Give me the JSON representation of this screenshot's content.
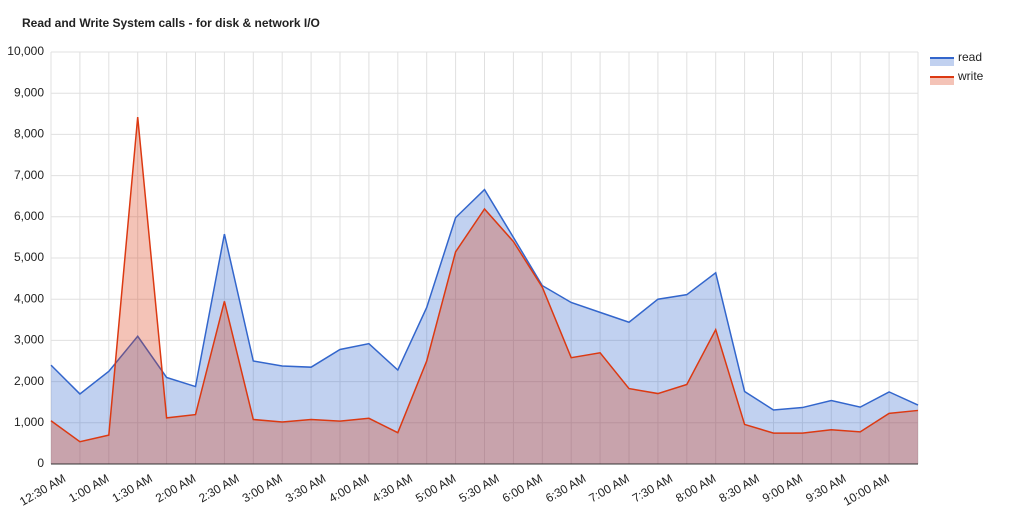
{
  "chart_data": {
    "type": "area",
    "title": "Read and Write System calls - for disk & network I/O",
    "x": [
      30,
      50,
      70,
      90,
      110,
      130,
      150,
      170,
      190,
      210,
      230,
      250,
      270,
      290,
      310,
      330,
      350,
      370,
      390,
      410,
      430,
      450,
      470,
      490,
      510,
      530,
      550,
      570,
      590,
      610,
      630
    ],
    "xlim": [
      30,
      630
    ],
    "xticks": [
      {
        "value": 30,
        "label": "12:30 AM"
      },
      {
        "value": 60,
        "label": "1:00 AM"
      },
      {
        "value": 90,
        "label": "1:30 AM"
      },
      {
        "value": 120,
        "label": "2:00 AM"
      },
      {
        "value": 150,
        "label": "2:30 AM"
      },
      {
        "value": 180,
        "label": "3:00 AM"
      },
      {
        "value": 210,
        "label": "3:30 AM"
      },
      {
        "value": 240,
        "label": "4:00 AM"
      },
      {
        "value": 270,
        "label": "4:30 AM"
      },
      {
        "value": 300,
        "label": "5:00 AM"
      },
      {
        "value": 330,
        "label": "5:30 AM"
      },
      {
        "value": 360,
        "label": "6:00 AM"
      },
      {
        "value": 390,
        "label": "6:30 AM"
      },
      {
        "value": 420,
        "label": "7:00 AM"
      },
      {
        "value": 450,
        "label": "7:30 AM"
      },
      {
        "value": 480,
        "label": "8:00 AM"
      },
      {
        "value": 510,
        "label": "8:30 AM"
      },
      {
        "value": 540,
        "label": "9:00 AM"
      },
      {
        "value": 570,
        "label": "9:30 AM"
      },
      {
        "value": 600,
        "label": "10:00 AM"
      }
    ],
    "ylim": [
      0,
      10000
    ],
    "yticks": [
      0,
      {
        "value": 1000,
        "label": "1,000"
      },
      {
        "value": 2000,
        "label": "2,000"
      },
      {
        "value": 3000,
        "label": "3,000"
      },
      {
        "value": 4000,
        "label": "4,000"
      },
      {
        "value": 5000,
        "label": "5,000"
      },
      {
        "value": 6000,
        "label": "6,000"
      },
      {
        "value": 7000,
        "label": "7,000"
      },
      {
        "value": 8000,
        "label": "8,000"
      },
      {
        "value": 9000,
        "label": "9,000"
      },
      {
        "value": 10000,
        "label": "10,000"
      }
    ],
    "grid": true,
    "legend": "right",
    "series": [
      {
        "name": "read",
        "color": "#3366cc",
        "values": [
          2400,
          1700,
          2250,
          3100,
          2100,
          1880,
          5580,
          2500,
          2380,
          2350,
          2780,
          2920,
          2280,
          3800,
          5980,
          6660,
          5500,
          4330,
          3920,
          3680,
          3440,
          4000,
          4110,
          4640,
          1760,
          1310,
          1370,
          1540,
          1380,
          1750,
          1430
        ]
      },
      {
        "name": "write",
        "color": "#dc3912",
        "values": [
          1050,
          540,
          700,
          8420,
          1120,
          1200,
          3950,
          1080,
          1020,
          1080,
          1040,
          1110,
          760,
          2500,
          5150,
          6190,
          5400,
          4290,
          2580,
          2700,
          1830,
          1710,
          1930,
          3260,
          960,
          750,
          750,
          830,
          780,
          1230,
          1300
        ]
      }
    ]
  }
}
